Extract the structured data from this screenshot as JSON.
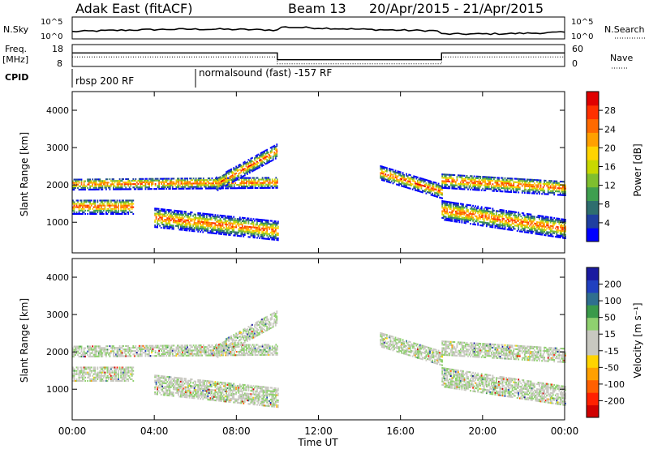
{
  "header": {
    "radar": "Adak East (fitACF)",
    "beam": "Beam 13",
    "date_range": "20/Apr/2015 - 21/Apr/2015"
  },
  "top_panels": {
    "nsky_label": "N.Sky",
    "nsky_top_tick": "10^5",
    "nsky_bottom_tick": "10^0",
    "nsearch_label": "N.Search",
    "freq_label_line1": "Freq.",
    "freq_label_line2": "[MHz]",
    "freq_ticks": [
      "18",
      "8"
    ],
    "nave_ticks": [
      "60",
      "0"
    ],
    "nave_label": "Nave",
    "cpid_label": "CPID",
    "cpid_segments": [
      {
        "label": "rbsp 200 RF",
        "start_hour": 0
      },
      {
        "label": "normalsound (fast) -157 RF",
        "start_hour": 6
      }
    ]
  },
  "colorbars": {
    "power": {
      "label": "Power [dB]",
      "ticks": [
        "4",
        "8",
        "12",
        "16",
        "20",
        "24",
        "28"
      ],
      "colors": [
        "#0000ff",
        "#1f3fa0",
        "#2e6e6e",
        "#3f9f4f",
        "#7fbf2f",
        "#c8d800",
        "#ffd400",
        "#ffa000",
        "#ff6a00",
        "#ff3000",
        "#e00000"
      ]
    },
    "velocity": {
      "label": "Velocity [m s⁻¹]",
      "ticks": [
        "200",
        "100",
        "50",
        "15",
        "-15",
        "-50",
        "-100",
        "-200"
      ],
      "colors": [
        "#1a1aa0",
        "#2040c0",
        "#2f6f8f",
        "#3a9a4a",
        "#8fd06f",
        "#c8c8c0",
        "#c8c8c0",
        "#ffd400",
        "#ffa000",
        "#ff6000",
        "#ff2000",
        "#d00000"
      ]
    }
  },
  "chart_data": {
    "type": "heatmap",
    "xlabel": "Time UT",
    "x_ticks": [
      "00:00",
      "04:00",
      "08:00",
      "12:00",
      "16:00",
      "20:00",
      "00:00"
    ],
    "xlim_hours": [
      0,
      24
    ],
    "ylabel": "Slant Range [km]",
    "y_ticks": [
      1000,
      2000,
      3000,
      4000
    ],
    "ylim_km": [
      180,
      4500
    ],
    "frequency_mhz": [
      {
        "from_hour": 0,
        "to_hour": 10,
        "value": 15
      },
      {
        "from_hour": 10,
        "to_hour": 18,
        "value": 11
      },
      {
        "from_hour": 18,
        "to_hour": 24,
        "value": 15
      }
    ],
    "backscatter_bands": [
      {
        "from_hour": 0,
        "to_hour": 10,
        "center_km_start": 2000,
        "center_km_end": 2050,
        "half_width_km": 150
      },
      {
        "from_hour": 7,
        "to_hour": 10,
        "center_km_start": 2000,
        "center_km_end": 2900,
        "half_width_km": 180
      },
      {
        "from_hour": 0,
        "to_hour": 3,
        "center_km_start": 1400,
        "center_km_end": 1400,
        "half_width_km": 200
      },
      {
        "from_hour": 4,
        "to_hour": 10,
        "center_km_start": 1100,
        "center_km_end": 750,
        "half_width_km": 250
      },
      {
        "from_hour": 15,
        "to_hour": 18,
        "center_km_start": 2300,
        "center_km_end": 1800,
        "half_width_km": 180
      },
      {
        "from_hour": 18,
        "to_hour": 24,
        "center_km_start": 2100,
        "center_km_end": 1900,
        "half_width_km": 200
      },
      {
        "from_hour": 18,
        "to_hour": 24,
        "center_km_start": 1300,
        "center_km_end": 800,
        "half_width_km": 250
      }
    ]
  }
}
